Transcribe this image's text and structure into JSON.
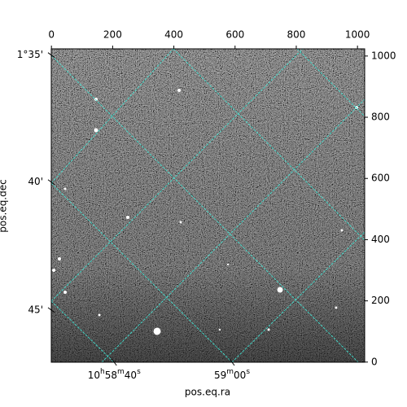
{
  "chart_data": {
    "type": "image",
    "xlabel": "pos.eq.ra",
    "ylabel": "pos.eq.dec",
    "xlim": [
      -0.5,
      1023.5
    ],
    "ylim": [
      -0.5,
      1023.5
    ],
    "xticks": [
      0,
      200,
      400,
      600,
      800,
      1000
    ],
    "yticks": [
      0,
      200,
      400,
      600,
      800,
      1000
    ],
    "ra_ticks": [
      {
        "value": 205,
        "label": "10h58m40s"
      },
      {
        "value": 590,
        "label": "59m00s"
      }
    ],
    "dec_ticks": [
      {
        "value": 1003,
        "label": "1°35'"
      },
      {
        "value": 588,
        "label": "40'"
      },
      {
        "value": 170,
        "label": "45'"
      }
    ],
    "grid_color": "#40e0d0"
  }
}
